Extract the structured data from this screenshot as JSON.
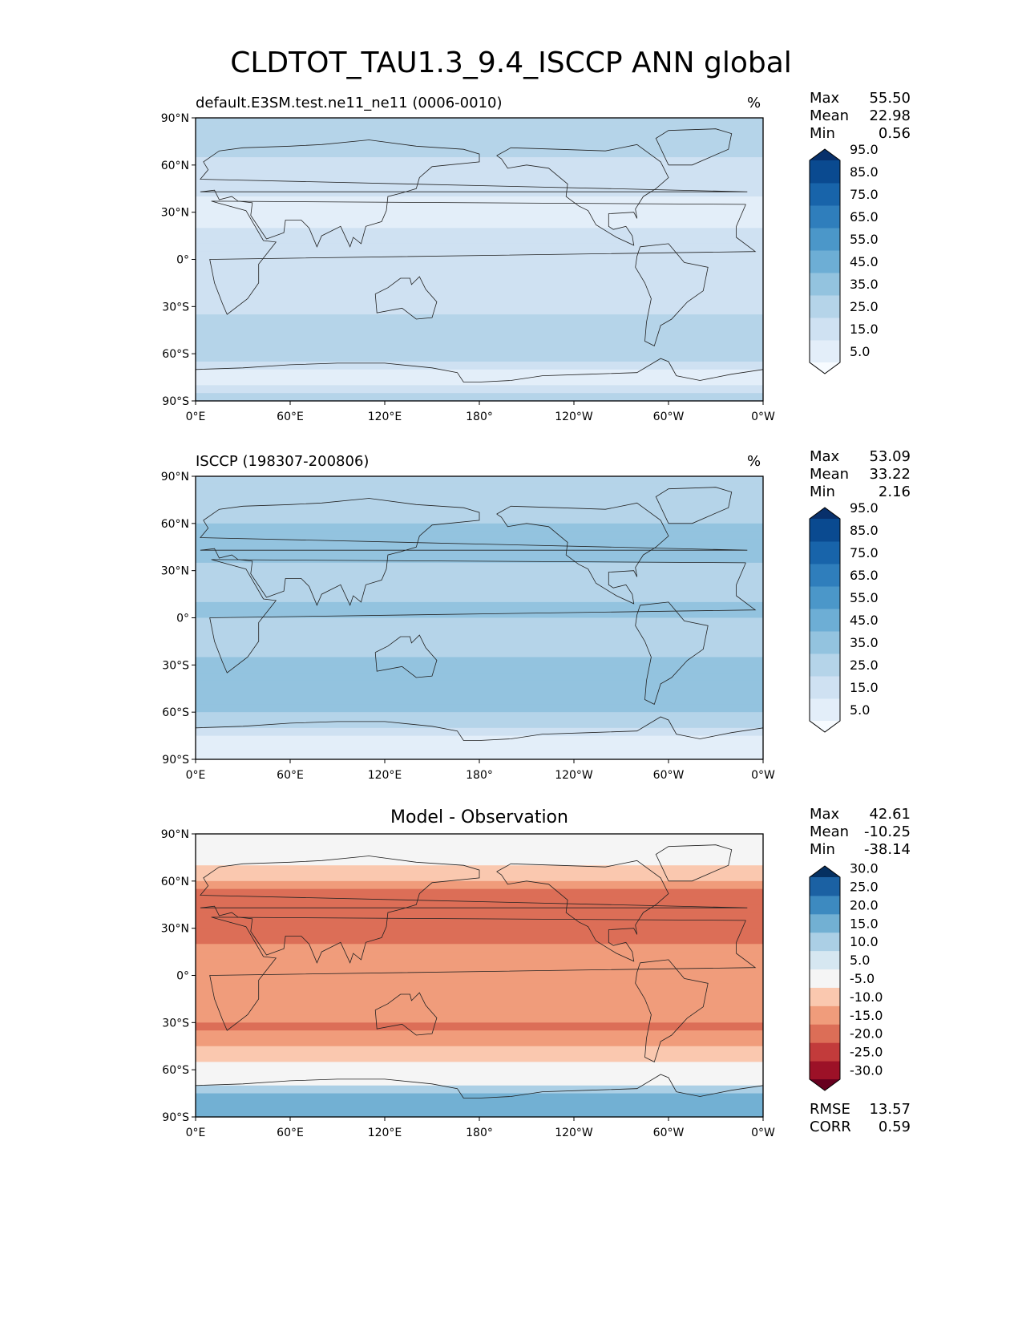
{
  "title": "CLDTOT_TAU1.3_9.4_ISCCP ANN global",
  "lat_ticks": [
    "90°N",
    "60°N",
    "30°N",
    "0°",
    "30°S",
    "60°S",
    "90°S"
  ],
  "lon_ticks": [
    "0°E",
    "60°E",
    "120°E",
    "180°",
    "120°W",
    "60°W",
    "0°W"
  ],
  "panels": [
    {
      "title_left": "default.E3SM.test.ne11_ne11 (0006-0010)",
      "title_right": "%",
      "stats": [
        {
          "label": "Max",
          "value": "55.50"
        },
        {
          "label": "Mean",
          "value": "22.98"
        },
        {
          "label": "Min",
          "value": "0.56"
        }
      ],
      "colorbar_labels": [
        "95.0",
        "85.0",
        "75.0",
        "65.0",
        "55.0",
        "45.0",
        "35.0",
        "25.0",
        "15.0",
        "5.0"
      ]
    },
    {
      "title_left": "ISCCP (198307-200806)",
      "title_right": "%",
      "stats": [
        {
          "label": "Max",
          "value": "53.09"
        },
        {
          "label": "Mean",
          "value": "33.22"
        },
        {
          "label": "Min",
          "value": "2.16"
        }
      ],
      "colorbar_labels": [
        "95.0",
        "85.0",
        "75.0",
        "65.0",
        "55.0",
        "45.0",
        "35.0",
        "25.0",
        "15.0",
        "5.0"
      ]
    },
    {
      "title_center": "Model - Observation",
      "stats": [
        {
          "label": "Max",
          "value": "42.61"
        },
        {
          "label": "Mean",
          "value": "-10.25"
        },
        {
          "label": "Min",
          "value": "-38.14"
        }
      ],
      "colorbar_labels": [
        "30.0",
        "25.0",
        "20.0",
        "15.0",
        "10.0",
        "5.0",
        "-5.0",
        "-10.0",
        "-15.0",
        "-20.0",
        "-25.0",
        "-30.0"
      ],
      "metrics": [
        {
          "label": "RMSE",
          "value": "13.57"
        },
        {
          "label": "CORR",
          "value": "0.59"
        }
      ]
    }
  ],
  "colors": {
    "blues": [
      "#f7fbff",
      "#e3eef9",
      "#cfe1f2",
      "#b5d4e9",
      "#93c3df",
      "#6daed5",
      "#4b97c9",
      "#2f7ebc",
      "#1864aa",
      "#0a4a90",
      "#08306b"
    ],
    "rdbu": [
      "#67001f",
      "#9c1127",
      "#c23b3b",
      "#dc6e57",
      "#f09c7b",
      "#fac8af",
      "#f5f5f5",
      "#d6e7f1",
      "#abcfe5",
      "#72b0d3",
      "#3d8ac0",
      "#1b61a3",
      "#053061"
    ]
  },
  "chart_data": [
    {
      "type": "heatmap",
      "title": "default.E3SM.test.ne11_ne11 (0006-0010)",
      "units": "%",
      "xlabel": "",
      "ylabel": "",
      "x_range": [
        0,
        360
      ],
      "y_range": [
        -90,
        90
      ],
      "levels": [
        5,
        15,
        25,
        35,
        45,
        55,
        65,
        75,
        85,
        95
      ],
      "colormap": "Blues",
      "stats": {
        "max": 55.5,
        "mean": 22.98,
        "min": 0.56
      },
      "zonal_profile": {
        "lat": [
          85,
          75,
          65,
          55,
          45,
          35,
          25,
          15,
          5,
          -5,
          -15,
          -25,
          -35,
          -45,
          -55,
          -65,
          -75,
          -85
        ],
        "value": [
          30,
          28,
          24,
          20,
          16,
          12,
          12,
          18,
          22,
          24,
          20,
          18,
          26,
          30,
          34,
          26,
          8,
          28
        ]
      }
    },
    {
      "type": "heatmap",
      "title": "ISCCP (198307-200806)",
      "units": "%",
      "xlabel": "",
      "ylabel": "",
      "x_range": [
        0,
        360
      ],
      "y_range": [
        -90,
        90
      ],
      "levels": [
        5,
        15,
        25,
        35,
        45,
        55,
        65,
        75,
        85,
        95
      ],
      "colormap": "Blues",
      "stats": {
        "max": 53.09,
        "mean": 33.22,
        "min": 2.16
      },
      "zonal_profile": {
        "lat": [
          85,
          75,
          65,
          55,
          45,
          35,
          25,
          15,
          5,
          -5,
          -15,
          -25,
          -35,
          -45,
          -55,
          -65,
          -75,
          -85
        ],
        "value": [
          28,
          30,
          32,
          36,
          40,
          36,
          30,
          34,
          36,
          34,
          32,
          34,
          42,
          44,
          40,
          30,
          12,
          10
        ]
      }
    },
    {
      "type": "heatmap",
      "title": "Model - Observation",
      "xlabel": "",
      "ylabel": "",
      "x_range": [
        0,
        360
      ],
      "y_range": [
        -90,
        90
      ],
      "levels": [
        -30,
        -25,
        -20,
        -15,
        -10,
        -5,
        5,
        10,
        15,
        20,
        25,
        30
      ],
      "colormap": "RdBu",
      "stats": {
        "max": 42.61,
        "mean": -10.25,
        "min": -38.14
      },
      "metrics": {
        "rmse": 13.57,
        "corr": 0.59
      },
      "zonal_profile": {
        "lat": [
          85,
          75,
          65,
          55,
          45,
          35,
          25,
          15,
          5,
          -5,
          -15,
          -25,
          -35,
          -45,
          -55,
          -65,
          -75,
          -85
        ],
        "value": [
          4,
          -2,
          -8,
          -14,
          -20,
          -20,
          -16,
          -14,
          -12,
          -10,
          -12,
          -14,
          -16,
          -12,
          -4,
          -2,
          20,
          18
        ]
      }
    }
  ]
}
